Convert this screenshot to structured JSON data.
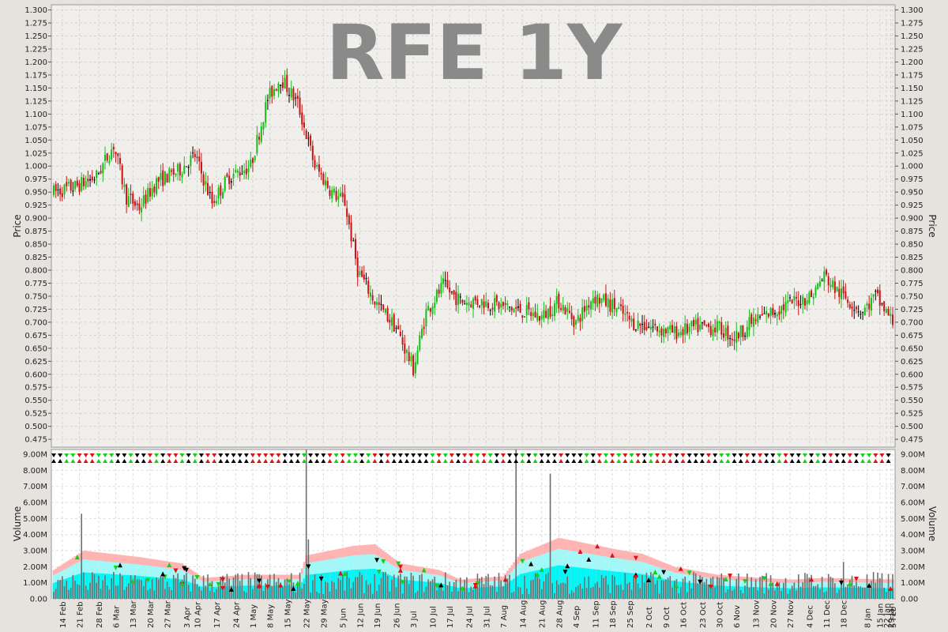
{
  "chart_data": [
    {
      "type": "candlestick",
      "title": "RFE 1Y",
      "ylabel": "Price",
      "ylim": [
        0.46,
        1.31
      ],
      "yticks": [
        0.475,
        0.5,
        0.525,
        0.55,
        0.575,
        0.6,
        0.625,
        0.65,
        0.675,
        0.7,
        0.725,
        0.75,
        0.775,
        0.8,
        0.825,
        0.85,
        0.875,
        0.9,
        0.925,
        0.95,
        0.975,
        1.0,
        1.025,
        1.05,
        1.075,
        1.1,
        1.125,
        1.15,
        1.175,
        1.2,
        1.225,
        1.25,
        1.275,
        1.3
      ],
      "up_color": "#16c016",
      "down_color": "#c81414",
      "flat_color": "#000000",
      "grid": true,
      "anchors": [
        [
          0,
          0.95
        ],
        [
          10,
          0.96
        ],
        [
          20,
          0.98
        ],
        [
          28,
          1.04
        ],
        [
          34,
          0.94
        ],
        [
          40,
          0.92
        ],
        [
          48,
          0.97
        ],
        [
          58,
          0.99
        ],
        [
          66,
          1.02
        ],
        [
          74,
          0.93
        ],
        [
          82,
          0.98
        ],
        [
          92,
          1.0
        ],
        [
          100,
          1.13
        ],
        [
          106,
          1.17
        ],
        [
          114,
          1.12
        ],
        [
          122,
          1.0
        ],
        [
          130,
          0.95
        ],
        [
          136,
          0.93
        ],
        [
          142,
          0.8
        ],
        [
          150,
          0.74
        ],
        [
          160,
          0.69
        ],
        [
          168,
          0.61
        ],
        [
          174,
          0.72
        ],
        [
          182,
          0.77
        ],
        [
          190,
          0.74
        ],
        [
          200,
          0.74
        ],
        [
          210,
          0.73
        ],
        [
          220,
          0.72
        ],
        [
          228,
          0.71
        ],
        [
          236,
          0.74
        ],
        [
          244,
          0.7
        ],
        [
          252,
          0.75
        ],
        [
          262,
          0.73
        ],
        [
          270,
          0.7
        ],
        [
          280,
          0.69
        ],
        [
          290,
          0.68
        ],
        [
          300,
          0.69
        ],
        [
          310,
          0.69
        ],
        [
          318,
          0.67
        ],
        [
          326,
          0.7
        ],
        [
          336,
          0.72
        ],
        [
          346,
          0.74
        ],
        [
          354,
          0.75
        ],
        [
          360,
          0.79
        ],
        [
          366,
          0.76
        ],
        [
          372,
          0.74
        ],
        [
          378,
          0.72
        ],
        [
          384,
          0.75
        ],
        [
          392,
          0.7
        ]
      ],
      "n_bars": 393
    },
    {
      "type": "bar",
      "ylabel": "Volume",
      "ylim": [
        0,
        9300000
      ],
      "yticks": [
        0,
        1000000,
        2000000,
        3000000,
        4000000,
        5000000,
        6000000,
        7000000,
        8000000,
        9000000
      ],
      "yticklabels": [
        "0.00",
        "1.00M",
        "2.00M",
        "3.00M",
        "4.00M",
        "5.00M",
        "6.00M",
        "7.00M",
        "8.00M",
        "9.00M"
      ],
      "bar_color": "#6e6e6e",
      "band_colors": [
        "#ffb4b4",
        "#a0fafa",
        "#00f5f5"
      ],
      "spikes": [
        [
          13,
          5300000
        ],
        [
          118,
          9300000
        ],
        [
          119,
          3700000
        ],
        [
          216,
          9300000
        ],
        [
          232,
          7800000
        ],
        [
          369,
          2300000
        ]
      ],
      "band_anchors": [
        [
          0,
          1800000
        ],
        [
          14,
          3000000
        ],
        [
          40,
          2600000
        ],
        [
          60,
          2200000
        ],
        [
          70,
          1300000
        ],
        [
          90,
          1500000
        ],
        [
          115,
          1500000
        ],
        [
          118,
          2700000
        ],
        [
          140,
          3300000
        ],
        [
          150,
          3400000
        ],
        [
          162,
          2200000
        ],
        [
          180,
          1800000
        ],
        [
          190,
          1200000
        ],
        [
          210,
          1400000
        ],
        [
          218,
          2800000
        ],
        [
          236,
          3800000
        ],
        [
          262,
          3100000
        ],
        [
          275,
          2800000
        ],
        [
          290,
          2000000
        ],
        [
          310,
          1500000
        ],
        [
          330,
          1300000
        ],
        [
          345,
          1200000
        ],
        [
          360,
          1300000
        ],
        [
          392,
          1200000
        ]
      ],
      "markers_count": 80
    }
  ],
  "x_axis": {
    "labels": [
      {
        "bar": 4,
        "text": "14 Feb"
      },
      {
        "bar": 12,
        "text": "21 Feb"
      },
      {
        "bar": 21,
        "text": "28 Feb"
      },
      {
        "bar": 29,
        "text": "6 Mar"
      },
      {
        "bar": 37,
        "text": "13 Mar"
      },
      {
        "bar": 45,
        "text": "20 Mar"
      },
      {
        "bar": 53,
        "text": "27 Mar"
      },
      {
        "bar": 62,
        "text": "3 Apr"
      },
      {
        "bar": 67,
        "text": "10 Apr"
      },
      {
        "bar": 76,
        "text": "17 Apr"
      },
      {
        "bar": 85,
        "text": "24 Apr"
      },
      {
        "bar": 93,
        "text": "1 May"
      },
      {
        "bar": 101,
        "text": "8 May"
      },
      {
        "bar": 109,
        "text": "15 May"
      },
      {
        "bar": 118,
        "text": "22 May"
      },
      {
        "bar": 126,
        "text": "29 May"
      },
      {
        "bar": 135,
        "text": "5 Jun"
      },
      {
        "bar": 143,
        "text": "12 Jun"
      },
      {
        "bar": 151,
        "text": "19 Jun"
      },
      {
        "bar": 160,
        "text": "26 Jun"
      },
      {
        "bar": 168,
        "text": "3 Jul"
      },
      {
        "bar": 177,
        "text": "10 Jul"
      },
      {
        "bar": 185,
        "text": "17 Jul"
      },
      {
        "bar": 194,
        "text": "24 Jul"
      },
      {
        "bar": 202,
        "text": "31 Jul"
      },
      {
        "bar": 210,
        "text": "7 Aug"
      },
      {
        "bar": 219,
        "text": "14 Aug"
      },
      {
        "bar": 228,
        "text": "21 Aug"
      },
      {
        "bar": 236,
        "text": "28 Aug"
      },
      {
        "bar": 244,
        "text": "4 Sep"
      },
      {
        "bar": 253,
        "text": "11 Sep"
      },
      {
        "bar": 261,
        "text": "18 Sep"
      },
      {
        "bar": 269,
        "text": "25 Sep"
      },
      {
        "bar": 278,
        "text": "2 Oct"
      },
      {
        "bar": 286,
        "text": "9 Oct"
      },
      {
        "bar": 294,
        "text": "16 Oct"
      },
      {
        "bar": 303,
        "text": "23 Oct"
      },
      {
        "bar": 311,
        "text": "30 Oct"
      },
      {
        "bar": 319,
        "text": "6 Nov"
      },
      {
        "bar": 328,
        "text": "13 Nov"
      },
      {
        "bar": 336,
        "text": "20 Nov"
      },
      {
        "bar": 344,
        "text": "27 Nov"
      },
      {
        "bar": 353,
        "text": "4 Dec"
      },
      {
        "bar": 361,
        "text": "11 Dec"
      },
      {
        "bar": 369,
        "text": "18 Dec"
      },
      {
        "bar": 380,
        "text": "8 Jan"
      },
      {
        "bar": 386,
        "text": "15 Jan"
      },
      {
        "bar": 389,
        "text": "22 Jan"
      },
      {
        "bar": 391,
        "text": "29 Jan"
      },
      {
        "bar": 392,
        "text": "5 Feb"
      }
    ]
  }
}
